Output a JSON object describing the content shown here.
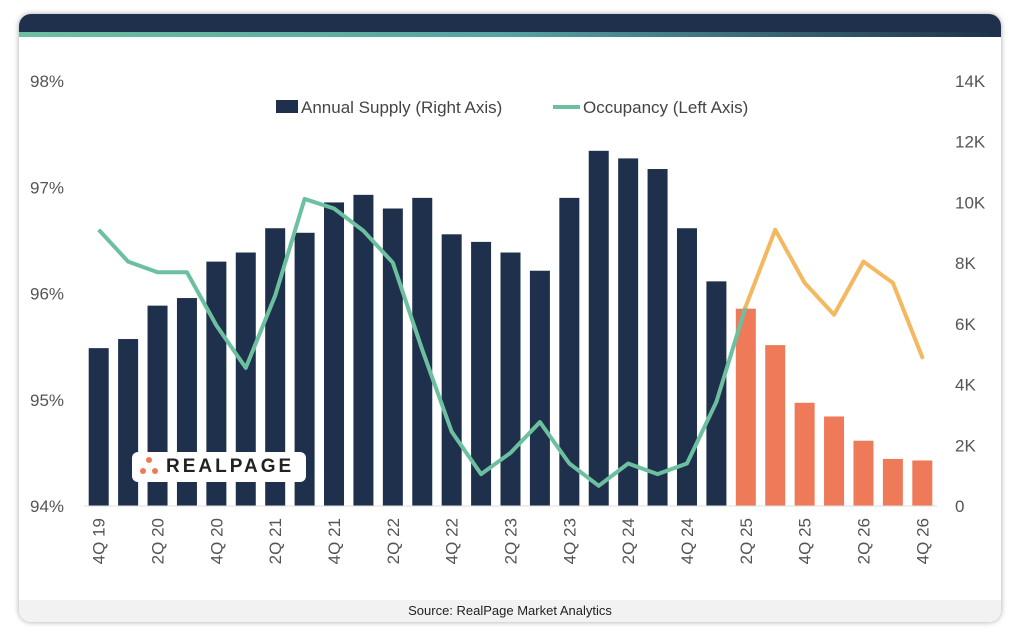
{
  "colors": {
    "header": "#1e304b",
    "bar_actual": "#1e304b",
    "bar_forecast": "#ef7a59",
    "line_actual": "#6cc0a0",
    "line_forecast": "#f4b860",
    "grid_text": "#555555"
  },
  "logo": {
    "text": "REALPAGE"
  },
  "footer": {
    "source": "Source: RealPage Market Analytics"
  },
  "chart_data": {
    "type": "bar",
    "title": "",
    "legend": [
      {
        "label": "Annual Supply (Right Axis)",
        "kind": "bar"
      },
      {
        "label": "Occupancy (Left Axis)",
        "kind": "line"
      }
    ],
    "legend_position": "top-center",
    "categories": [
      "4Q19",
      "1Q20",
      "2Q20",
      "3Q20",
      "4Q20",
      "1Q21",
      "2Q21",
      "3Q21",
      "4Q21",
      "1Q22",
      "2Q22",
      "3Q22",
      "4Q22",
      "1Q23",
      "2Q23",
      "3Q23",
      "4Q23",
      "1Q24",
      "2Q24",
      "3Q24",
      "4Q24",
      "1Q25",
      "2Q25",
      "3Q25",
      "4Q25",
      "1Q26",
      "2Q26",
      "3Q26",
      "4Q26"
    ],
    "x_tick_labels": [
      "4Q 19",
      "2Q 20",
      "4Q 20",
      "2Q 21",
      "4Q 21",
      "2Q 22",
      "4Q 22",
      "2Q 23",
      "4Q 23",
      "2Q 24",
      "4Q 24",
      "2Q 25",
      "4Q 25",
      "2Q 26",
      "4Q 26"
    ],
    "forecast_start_index": 22,
    "series": [
      {
        "name": "Annual Supply (Right Axis)",
        "type": "bar",
        "axis": "right",
        "values": [
          5200,
          5500,
          6600,
          6850,
          8050,
          8350,
          9150,
          9000,
          10000,
          10250,
          9800,
          10150,
          8950,
          8700,
          8350,
          7750,
          10150,
          11700,
          11450,
          11100,
          9150,
          7400,
          6500,
          5300,
          3400,
          2950,
          2150,
          1550,
          1500
        ]
      },
      {
        "name": "Occupancy (Left Axis)",
        "type": "line",
        "axis": "left",
        "values": [
          96.6,
          96.3,
          96.2,
          96.2,
          95.7,
          95.3,
          95.98,
          96.89,
          96.8,
          96.59,
          96.29,
          95.47,
          94.7,
          94.3,
          94.5,
          94.79,
          94.4,
          94.19,
          94.4,
          94.3,
          94.4,
          94.98,
          95.88,
          96.6,
          96.1,
          95.8,
          96.3,
          96.1,
          95.4
        ]
      }
    ],
    "ylim_left": [
      94,
      98
    ],
    "ylim_right": [
      0,
      14000
    ],
    "y_left_ticks": [
      "94%",
      "95%",
      "96%",
      "97%",
      "98%"
    ],
    "y_right_ticks": [
      "0",
      "2K",
      "4K",
      "6K",
      "8K",
      "10K",
      "12K",
      "14K"
    ],
    "grid": false
  }
}
